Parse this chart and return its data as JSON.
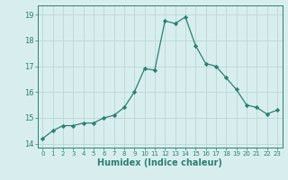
{
  "x": [
    0,
    1,
    2,
    3,
    4,
    5,
    6,
    7,
    8,
    9,
    10,
    11,
    12,
    13,
    14,
    15,
    16,
    17,
    18,
    19,
    20,
    21,
    22,
    23
  ],
  "y": [
    14.2,
    14.5,
    14.7,
    14.7,
    14.8,
    14.8,
    15.0,
    15.1,
    15.4,
    16.0,
    16.9,
    16.85,
    18.75,
    18.65,
    18.9,
    17.8,
    17.1,
    17.0,
    16.55,
    16.1,
    15.5,
    15.4,
    15.15,
    15.3
  ],
  "line_color": "#2d7f72",
  "marker": "D",
  "markersize": 2.2,
  "linewidth": 0.9,
  "xlabel": "Humidex (Indice chaleur)",
  "xlim": [
    -0.5,
    23.5
  ],
  "ylim": [
    13.85,
    19.35
  ],
  "yticks": [
    14,
    15,
    16,
    17,
    18,
    19
  ],
  "xticks": [
    0,
    1,
    2,
    3,
    4,
    5,
    6,
    7,
    8,
    9,
    10,
    11,
    12,
    13,
    14,
    15,
    16,
    17,
    18,
    19,
    20,
    21,
    22,
    23
  ],
  "bg_color": "#d8eeee",
  "grid_color": "#b8d8d4",
  "tick_color": "#2d7f72",
  "label_color": "#2d7f72",
  "xlabel_fontsize": 7,
  "ytick_fontsize": 6,
  "xtick_fontsize": 5
}
